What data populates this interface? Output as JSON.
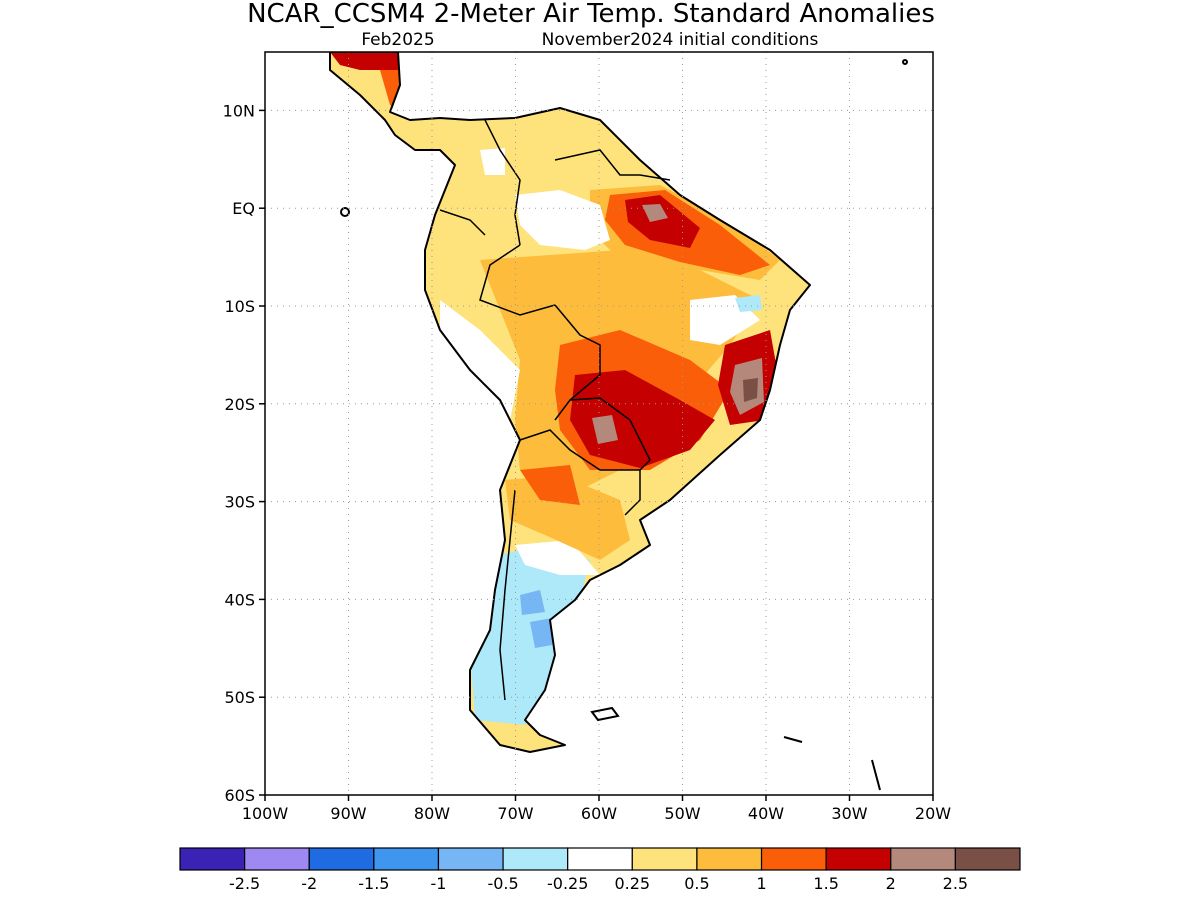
{
  "header": {
    "title": "NCAR_CCSM4 2-Meter Air Temp. Standard Anomalies",
    "valid_month": "Feb2025",
    "initial_conditions": "November2024 initial conditions"
  },
  "map": {
    "lon_labels": [
      "100W",
      "90W",
      "80W",
      "70W",
      "60W",
      "50W",
      "40W",
      "30W",
      "20W"
    ],
    "lat_labels": [
      "10N",
      "EQ",
      "10S",
      "20S",
      "30S",
      "40S",
      "50S",
      "60S"
    ],
    "extent": {
      "lon": [
        -100,
        -20
      ],
      "lat": [
        -60,
        16
      ]
    },
    "gridlines": "dotted"
  },
  "legend": {
    "colors": [
      "#3a22b4",
      "#9e88f2",
      "#1f6be2",
      "#3e96ee",
      "#76b6f4",
      "#ade9f8",
      "#ffffff",
      "#fee27c",
      "#fdbc3c",
      "#fa5e09",
      "#c50000",
      "#b5887c",
      "#7a4f45"
    ],
    "labels": [
      "-2.5",
      "-2",
      "-1.5",
      "-1",
      "-0.5",
      "-0.25",
      "0.25",
      "0.5",
      "1",
      "1.5",
      "2",
      "2.5"
    ]
  }
}
